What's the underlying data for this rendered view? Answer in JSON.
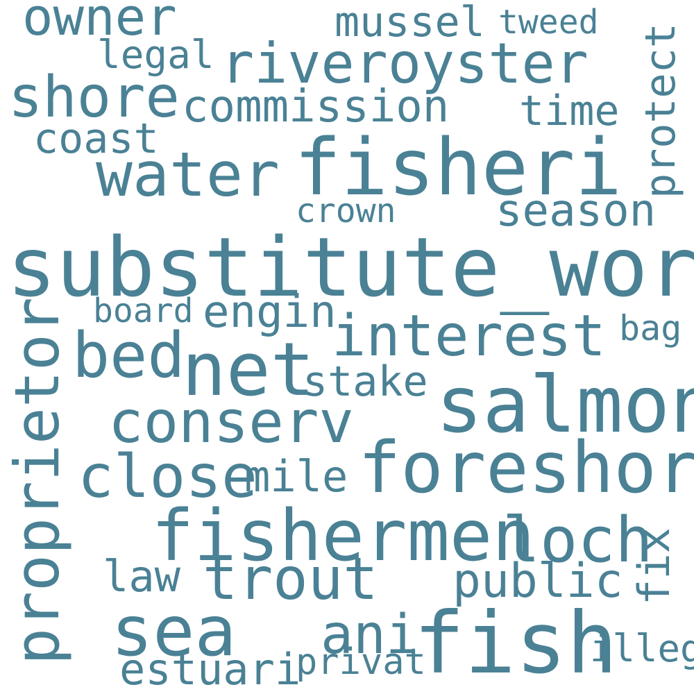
{
  "colors": {
    "word": "#4a8195",
    "background": "#ffffff"
  },
  "words": [
    "owner",
    "mussel",
    "tweed",
    "legal",
    "riveroyster",
    "shore",
    "commission",
    "time",
    "protect",
    "coast",
    "water",
    "fisheri",
    "crown",
    "season",
    "substitute_word",
    "board",
    "engin",
    "bag",
    "interest",
    "bed",
    "net",
    "stake",
    "proprietor",
    "salmon",
    "conserv",
    "close",
    "mile",
    "foreshor",
    "fishermen",
    "loch",
    "fix",
    "law",
    "trout",
    "public",
    "sea",
    "ani",
    "fish",
    "illeg",
    "estuari",
    "privat"
  ]
}
